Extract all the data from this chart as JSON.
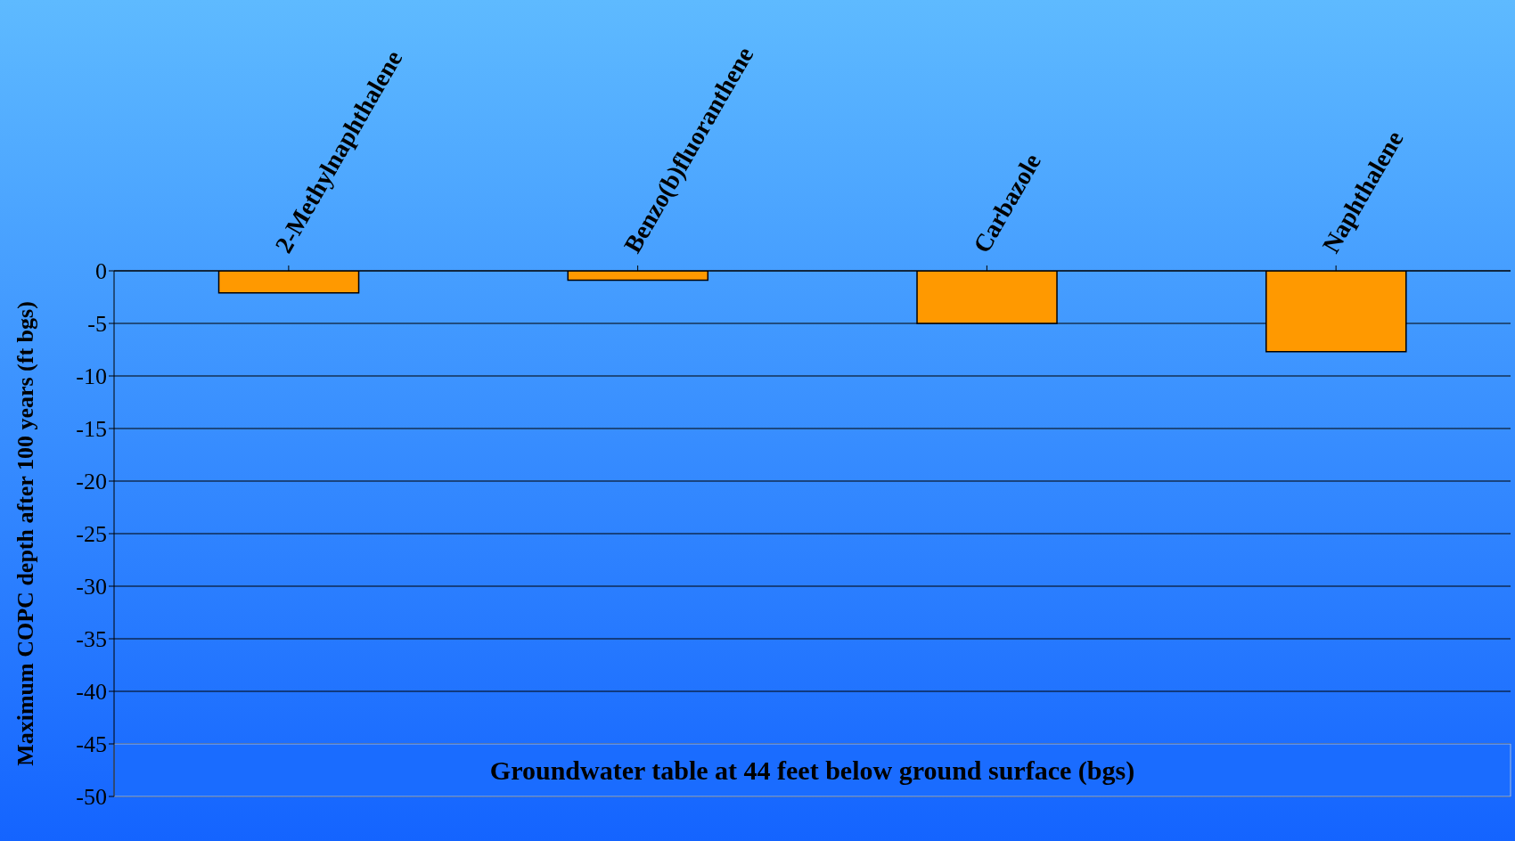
{
  "chart_data": {
    "type": "bar",
    "categories": [
      "2-Methylnaphthalene",
      "Benzo(b)fluoranthene",
      "Carbazole",
      "Naphthalene"
    ],
    "values": [
      -2.1,
      -0.9,
      -5.0,
      -7.7
    ],
    "color": "#ff9900",
    "ylabel": "Maximum COPC depth after 100 years (ft bgs)",
    "ylim": [
      -50,
      0
    ],
    "yticks": [
      0,
      -5,
      -10,
      -15,
      -20,
      -25,
      -30,
      -35,
      -40,
      -45,
      -50
    ],
    "grid": "y",
    "bands": [
      {
        "axis": "y",
        "from": -45,
        "to": -50,
        "label": "Groundwater table at 44 feet below ground surface (bgs)"
      }
    ]
  }
}
